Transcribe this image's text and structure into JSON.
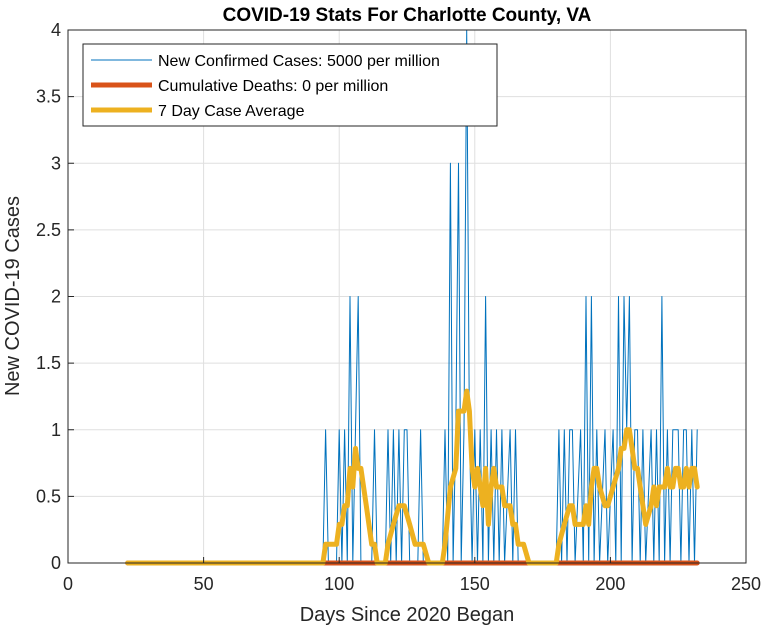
{
  "chart_data": {
    "type": "line",
    "title": "COVID-19 Stats For Charlotte County, VA",
    "xlabel": "Days Since 2020 Began",
    "ylabel": "New COVID-19 Cases",
    "xlim": [
      0,
      250
    ],
    "ylim": [
      0,
      4
    ],
    "xticks": [
      0,
      50,
      100,
      150,
      200,
      250
    ],
    "yticks": [
      0,
      0.5,
      1,
      1.5,
      2,
      2.5,
      3,
      3.5,
      4
    ],
    "x_tick_labels": [
      "0",
      "50",
      "100",
      "150",
      "200",
      "250"
    ],
    "y_tick_labels": [
      "0",
      "0.5",
      "1",
      "1.5",
      "2",
      "2.5",
      "3",
      "3.5",
      "4"
    ],
    "grid": true,
    "legend_position": "top-left",
    "series": [
      {
        "name": "New Confirmed Cases: 5000 per million",
        "color": "#0072BD",
        "points": [
          [
            22,
            0
          ],
          [
            94,
            0
          ],
          [
            95,
            1
          ],
          [
            96,
            0
          ],
          [
            99,
            0
          ],
          [
            100,
            1
          ],
          [
            101,
            0
          ],
          [
            102,
            1
          ],
          [
            103,
            0
          ],
          [
            104,
            2
          ],
          [
            105,
            0
          ],
          [
            106,
            1
          ],
          [
            107,
            2
          ],
          [
            108,
            0
          ],
          [
            112,
            0
          ],
          [
            113,
            1
          ],
          [
            114,
            0
          ],
          [
            117,
            0
          ],
          [
            118,
            1
          ],
          [
            119,
            0
          ],
          [
            120,
            1
          ],
          [
            121,
            0
          ],
          [
            122,
            1
          ],
          [
            123,
            0
          ],
          [
            124,
            1
          ],
          [
            125,
            1
          ],
          [
            126,
            0
          ],
          [
            129,
            0
          ],
          [
            130,
            1
          ],
          [
            131,
            0
          ],
          [
            138,
            0
          ],
          [
            139,
            1
          ],
          [
            140,
            0
          ],
          [
            141,
            3
          ],
          [
            142,
            0
          ],
          [
            143,
            1
          ],
          [
            144,
            3
          ],
          [
            145,
            0
          ],
          [
            146,
            1
          ],
          [
            147,
            4
          ],
          [
            148,
            1
          ],
          [
            149,
            0
          ],
          [
            150,
            1
          ],
          [
            151,
            0
          ],
          [
            152,
            1
          ],
          [
            153,
            0
          ],
          [
            154,
            2
          ],
          [
            155,
            0
          ],
          [
            156,
            1
          ],
          [
            157,
            0
          ],
          [
            158,
            1
          ],
          [
            159,
            0
          ],
          [
            160,
            1
          ],
          [
            161,
            0
          ],
          [
            163,
            1
          ],
          [
            164,
            0
          ],
          [
            165,
            1
          ],
          [
            166,
            0
          ],
          [
            180,
            0
          ],
          [
            181,
            1
          ],
          [
            182,
            0
          ],
          [
            183,
            1
          ],
          [
            184,
            0
          ],
          [
            185,
            1
          ],
          [
            186,
            1
          ],
          [
            187,
            0
          ],
          [
            189,
            1
          ],
          [
            190,
            0
          ],
          [
            191,
            2
          ],
          [
            192,
            0
          ],
          [
            193,
            2
          ],
          [
            194,
            0
          ],
          [
            195,
            1
          ],
          [
            196,
            0
          ],
          [
            198,
            1
          ],
          [
            199,
            0
          ],
          [
            201,
            1
          ],
          [
            202,
            0
          ],
          [
            203,
            2
          ],
          [
            204,
            0
          ],
          [
            205,
            2
          ],
          [
            206,
            1
          ],
          [
            207,
            2
          ],
          [
            208,
            0
          ],
          [
            209,
            1
          ],
          [
            210,
            1
          ],
          [
            211,
            0
          ],
          [
            212,
            1
          ],
          [
            213,
            0
          ],
          [
            215,
            1
          ],
          [
            216,
            0
          ],
          [
            217,
            1
          ],
          [
            218,
            0
          ],
          [
            219,
            2
          ],
          [
            220,
            0
          ],
          [
            221,
            1
          ],
          [
            222,
            0
          ],
          [
            223,
            1
          ],
          [
            224,
            1
          ],
          [
            225,
            1
          ],
          [
            226,
            0
          ],
          [
            227,
            1
          ],
          [
            228,
            1
          ],
          [
            229,
            0
          ],
          [
            230,
            1
          ],
          [
            231,
            0
          ],
          [
            232,
            1
          ]
        ]
      },
      {
        "name": "Cumulative Deaths: 0 per million",
        "color": "#D95319",
        "points": [
          [
            22,
            0
          ],
          [
            232,
            0
          ]
        ]
      },
      {
        "name": "7 Day Case Average",
        "color": "#EDB120",
        "points": [
          [
            22,
            0
          ],
          [
            94,
            0
          ],
          [
            95,
            0.14
          ],
          [
            99,
            0.14
          ],
          [
            100,
            0.29
          ],
          [
            101,
            0.29
          ],
          [
            102,
            0.43
          ],
          [
            103,
            0.43
          ],
          [
            104,
            0.71
          ],
          [
            105,
            0.57
          ],
          [
            106,
            0.86
          ],
          [
            107,
            0.71
          ],
          [
            108,
            0.71
          ],
          [
            110,
            0.43
          ],
          [
            112,
            0.14
          ],
          [
            113,
            0.14
          ],
          [
            114,
            0
          ],
          [
            117,
            0
          ],
          [
            118,
            0.14
          ],
          [
            120,
            0.29
          ],
          [
            122,
            0.43
          ],
          [
            124,
            0.43
          ],
          [
            126,
            0.29
          ],
          [
            128,
            0.14
          ],
          [
            130,
            0.14
          ],
          [
            131,
            0.14
          ],
          [
            133,
            0
          ],
          [
            138,
            0
          ],
          [
            139,
            0.14
          ],
          [
            141,
            0.57
          ],
          [
            143,
            0.71
          ],
          [
            144,
            1.14
          ],
          [
            146,
            1.14
          ],
          [
            147,
            1.29
          ],
          [
            148,
            1.14
          ],
          [
            149,
            0.71
          ],
          [
            150,
            0.57
          ],
          [
            151,
            0.71
          ],
          [
            152,
            0.57
          ],
          [
            153,
            0.43
          ],
          [
            154,
            0.71
          ],
          [
            155,
            0.29
          ],
          [
            156,
            0.57
          ],
          [
            157,
            0.71
          ],
          [
            158,
            0.57
          ],
          [
            160,
            0.57
          ],
          [
            161,
            0.43
          ],
          [
            163,
            0.43
          ],
          [
            164,
            0.29
          ],
          [
            165,
            0.29
          ],
          [
            166,
            0.14
          ],
          [
            168,
            0.14
          ],
          [
            170,
            0
          ],
          [
            180,
            0
          ],
          [
            181,
            0.14
          ],
          [
            183,
            0.29
          ],
          [
            185,
            0.43
          ],
          [
            186,
            0.43
          ],
          [
            187,
            0.29
          ],
          [
            189,
            0.29
          ],
          [
            190,
            0.29
          ],
          [
            191,
            0.43
          ],
          [
            192,
            0.29
          ],
          [
            193,
            0.57
          ],
          [
            194,
            0.71
          ],
          [
            195,
            0.71
          ],
          [
            196,
            0.57
          ],
          [
            198,
            0.43
          ],
          [
            199,
            0.43
          ],
          [
            201,
            0.57
          ],
          [
            203,
            0.71
          ],
          [
            204,
            0.86
          ],
          [
            205,
            0.86
          ],
          [
            206,
            1
          ],
          [
            207,
            1
          ],
          [
            208,
            0.86
          ],
          [
            209,
            0.71
          ],
          [
            210,
            0.71
          ],
          [
            211,
            0.57
          ],
          [
            212,
            0.43
          ],
          [
            213,
            0.29
          ],
          [
            215,
            0.43
          ],
          [
            216,
            0.57
          ],
          [
            217,
            0.43
          ],
          [
            218,
            0.57
          ],
          [
            219,
            0.57
          ],
          [
            220,
            0.57
          ],
          [
            221,
            0.71
          ],
          [
            222,
            0.57
          ],
          [
            223,
            0.57
          ],
          [
            224,
            0.71
          ],
          [
            225,
            0.71
          ],
          [
            226,
            0.57
          ],
          [
            227,
            0.57
          ],
          [
            228,
            0.71
          ],
          [
            229,
            0.57
          ],
          [
            230,
            0.71
          ],
          [
            231,
            0.71
          ],
          [
            232,
            0.57
          ]
        ]
      }
    ]
  }
}
